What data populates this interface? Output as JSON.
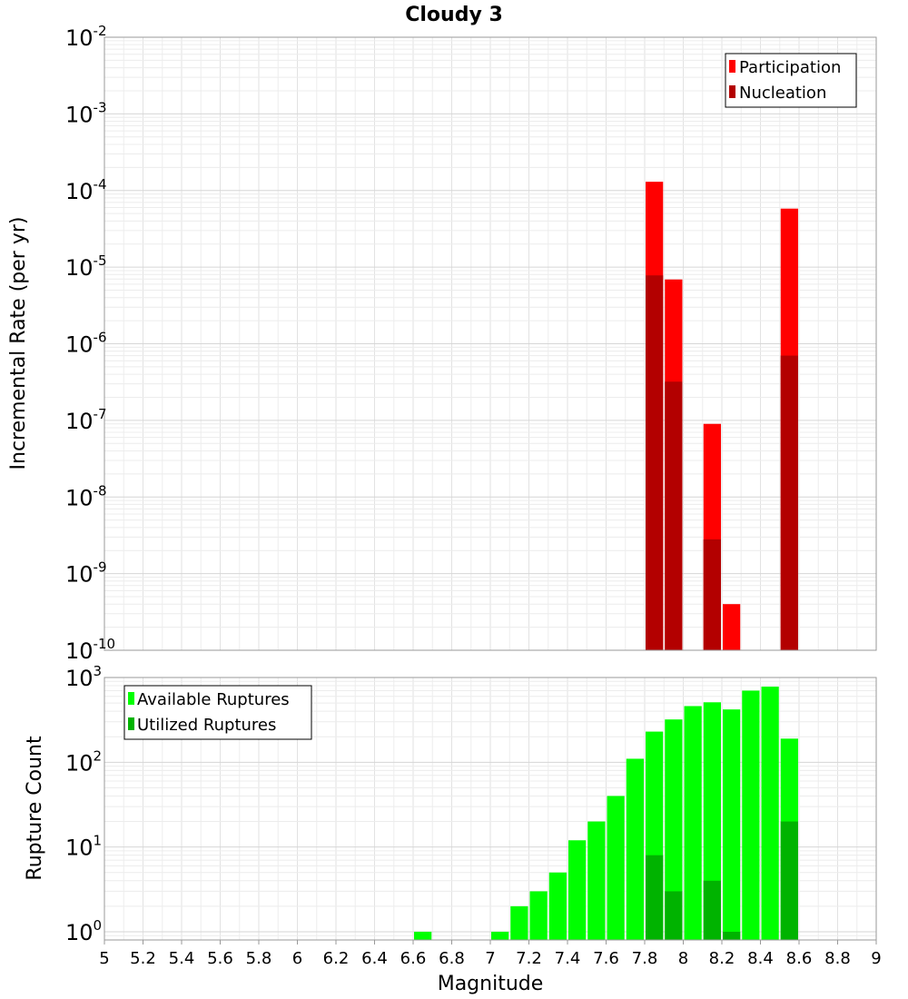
{
  "chart_data": [
    {
      "type": "bar",
      "title": "Cloudy 3",
      "xlabel": "",
      "ylabel": "Incremental Rate (per yr)",
      "yscale": "log",
      "ylim": [
        1e-10,
        0.01
      ],
      "xlim": [
        5,
        9
      ],
      "ytick_exponents": [
        "-2",
        "-3",
        "-4",
        "-5",
        "-6",
        "-7",
        "-8",
        "-9",
        "-10"
      ],
      "grid": true,
      "legend_position": "top-right",
      "bin_centers": [
        7.85,
        7.95,
        8.15,
        8.25,
        8.55
      ],
      "series": [
        {
          "name": "Participation",
          "color": "#ff0000",
          "values": [
            0.00013,
            6.9e-06,
            9e-08,
            4e-10,
            5.8e-05
          ]
        },
        {
          "name": "Nucleation",
          "color": "#b30000",
          "values": [
            7.8e-06,
            3.2e-07,
            2.8e-09,
            null,
            7e-07
          ]
        }
      ]
    },
    {
      "type": "bar",
      "xlabel": "Magnitude",
      "ylabel": "Rupture Count",
      "yscale": "log",
      "ylim": [
        0.8,
        1000
      ],
      "xlim": [
        5,
        9
      ],
      "xticks": [
        "5",
        "5.2",
        "5.4",
        "5.6",
        "5.8",
        "6",
        "6.2",
        "6.4",
        "6.6",
        "6.8",
        "7",
        "7.2",
        "7.4",
        "7.6",
        "7.8",
        "8",
        "8.2",
        "8.4",
        "8.6",
        "8.8",
        "9"
      ],
      "ytick_exponents": [
        "3",
        "2",
        "1",
        "0"
      ],
      "grid": true,
      "legend_position": "top-left",
      "bin_centers": [
        6.65,
        7.05,
        7.15,
        7.25,
        7.35,
        7.45,
        7.55,
        7.65,
        7.75,
        7.85,
        7.95,
        8.05,
        8.15,
        8.25,
        8.35,
        8.45,
        8.55
      ],
      "series": [
        {
          "name": "Available Ruptures",
          "color": "#00ff00",
          "values": [
            1,
            1,
            2,
            3,
            5,
            12,
            20,
            40,
            110,
            230,
            320,
            460,
            510,
            420,
            700,
            780,
            190
          ]
        },
        {
          "name": "Utilized Ruptures",
          "color": "#00b300",
          "values": [
            null,
            null,
            null,
            null,
            null,
            null,
            null,
            null,
            null,
            8,
            3,
            null,
            4,
            1,
            null,
            null,
            20
          ]
        }
      ]
    }
  ]
}
